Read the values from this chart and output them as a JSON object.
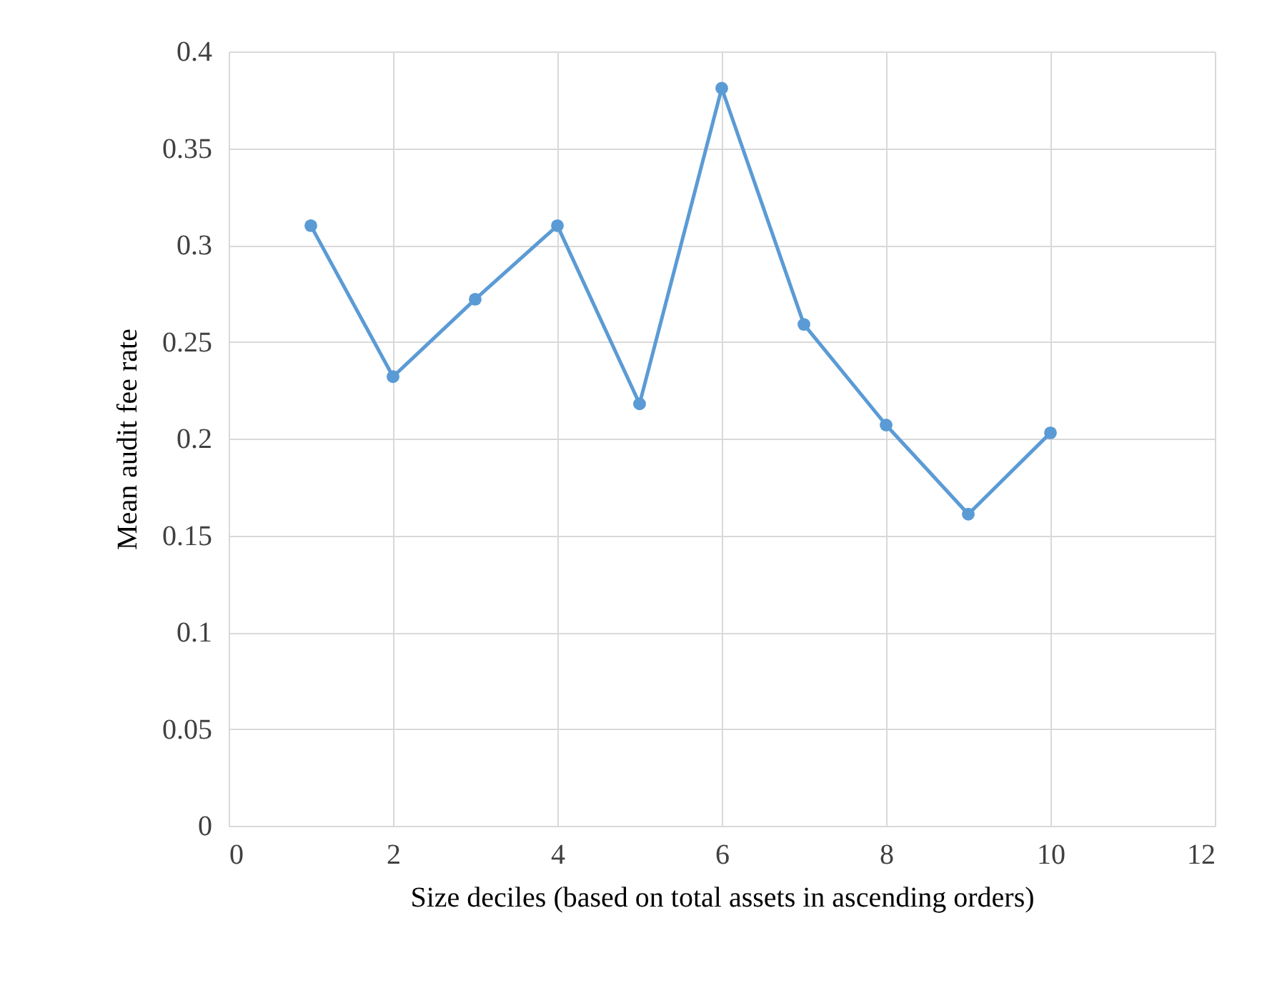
{
  "chart_data": {
    "type": "line",
    "xlabel": "Size  deciles  (based on total assets in  ascending  orders)",
    "ylabel": "Mean audit  fee rate",
    "x": [
      1,
      2,
      3,
      4,
      5,
      6,
      7,
      8,
      9,
      10
    ],
    "series": [
      {
        "color": "#5b9bd5",
        "values": [
          0.31,
          0.232,
          0.272,
          0.31,
          0.218,
          0.381,
          0.259,
          0.207,
          0.161,
          0.203
        ]
      }
    ],
    "xlim": [
      0,
      12
    ],
    "xticks": [
      0,
      2,
      4,
      6,
      8,
      10,
      12
    ],
    "ylim": [
      0,
      0.4
    ],
    "yticks": [
      0,
      0.05,
      0.1,
      0.15,
      0.2,
      0.25,
      0.3,
      0.35,
      0.4
    ],
    "grid": true,
    "marker": "circle",
    "line_style": "solid",
    "legend": false
  }
}
